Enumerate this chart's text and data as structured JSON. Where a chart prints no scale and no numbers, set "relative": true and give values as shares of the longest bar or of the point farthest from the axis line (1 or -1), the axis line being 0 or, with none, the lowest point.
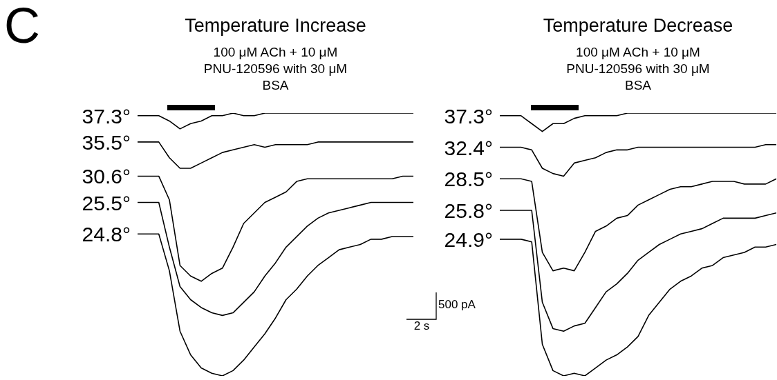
{
  "chart_data": [
    {
      "type": "line",
      "title": "Temperature Increase",
      "subtitle": "100 μM ACh + 10 μM PNU-120596 with 30 μM BSA",
      "relative": true,
      "marker": "none",
      "annotations": [
        "C"
      ],
      "categories": [
        null,
        null,
        null,
        null,
        null,
        null,
        null,
        null,
        null,
        null,
        null,
        null,
        null,
        null,
        null,
        null,
        null,
        null,
        null,
        null,
        null,
        null,
        null,
        null,
        null,
        null,
        null
      ],
      "series": [
        {
          "name": "37.3°",
          "color": "#000000",
          "values": [
            0.99,
            0.99,
            0.99,
            0.97,
            0.94,
            0.96,
            0.97,
            0.99,
            0.99,
            1.0,
            0.99,
            0.99,
            1.0,
            1.0,
            1.0,
            1.0,
            1.0,
            1.0,
            1.0,
            1.0,
            1.0,
            1.0,
            1.0,
            1.0,
            1.0,
            1.0,
            1.0
          ]
        },
        {
          "name": "35.5°",
          "color": "#000000",
          "values": [
            0.89,
            0.89,
            0.89,
            0.83,
            0.79,
            0.79,
            0.81,
            0.83,
            0.85,
            0.86,
            0.87,
            0.88,
            0.87,
            0.88,
            0.88,
            0.88,
            0.88,
            0.89,
            0.89,
            0.89,
            0.89,
            0.89,
            0.89,
            0.89,
            0.89,
            0.89,
            0.89
          ]
        },
        {
          "name": "30.6°",
          "color": "#000000",
          "values": [
            0.76,
            0.76,
            0.76,
            0.67,
            0.42,
            0.38,
            0.36,
            0.39,
            0.41,
            0.49,
            0.58,
            0.62,
            0.66,
            0.68,
            0.7,
            0.74,
            0.75,
            0.75,
            0.75,
            0.75,
            0.75,
            0.75,
            0.75,
            0.75,
            0.75,
            0.76,
            0.76
          ]
        },
        {
          "name": "25.5°",
          "color": "#000000",
          "values": [
            0.66,
            0.66,
            0.66,
            0.49,
            0.34,
            0.29,
            0.26,
            0.24,
            0.23,
            0.24,
            0.28,
            0.32,
            0.38,
            0.43,
            0.49,
            0.53,
            0.57,
            0.6,
            0.62,
            0.63,
            0.64,
            0.65,
            0.66,
            0.66,
            0.66,
            0.66,
            0.66
          ]
        },
        {
          "name": "24.8°",
          "color": "#000000",
          "values": [
            0.54,
            0.54,
            0.54,
            0.4,
            0.17,
            0.08,
            0.03,
            0.01,
            0.0,
            0.02,
            0.06,
            0.11,
            0.16,
            0.22,
            0.29,
            0.33,
            0.38,
            0.42,
            0.45,
            0.48,
            0.49,
            0.5,
            0.52,
            0.52,
            0.53,
            0.53,
            0.53
          ]
        }
      ]
    },
    {
      "type": "line",
      "title": "Temperature Decrease",
      "subtitle": "100 μM ACh + 10 μM PNU-120596 with 30 μM BSA",
      "relative": true,
      "marker": "none",
      "annotations": [
        "500 pA",
        "2 s"
      ],
      "categories": [
        null,
        null,
        null,
        null,
        null,
        null,
        null,
        null,
        null,
        null,
        null,
        null,
        null,
        null,
        null,
        null,
        null,
        null,
        null,
        null,
        null,
        null,
        null,
        null,
        null,
        null,
        null
      ],
      "series": [
        {
          "name": "37.3°",
          "color": "#000000",
          "values": [
            0.99,
            0.99,
            0.99,
            0.96,
            0.93,
            0.96,
            0.96,
            0.98,
            0.99,
            0.99,
            0.99,
            0.99,
            1.0,
            1.0,
            1.0,
            1.0,
            1.0,
            1.0,
            1.0,
            1.0,
            1.0,
            1.0,
            1.0,
            1.0,
            1.0,
            1.0,
            1.0
          ]
        },
        {
          "name": "32.4°",
          "color": "#000000",
          "values": [
            0.87,
            0.87,
            0.87,
            0.86,
            0.79,
            0.77,
            0.76,
            0.81,
            0.82,
            0.83,
            0.85,
            0.86,
            0.86,
            0.87,
            0.87,
            0.87,
            0.87,
            0.87,
            0.87,
            0.87,
            0.87,
            0.87,
            0.87,
            0.87,
            0.87,
            0.88,
            0.88
          ]
        },
        {
          "name": "28.5°",
          "color": "#000000",
          "values": [
            0.75,
            0.75,
            0.75,
            0.74,
            0.47,
            0.4,
            0.41,
            0.4,
            0.47,
            0.55,
            0.57,
            0.6,
            0.61,
            0.65,
            0.67,
            0.69,
            0.71,
            0.72,
            0.72,
            0.73,
            0.74,
            0.74,
            0.74,
            0.73,
            0.73,
            0.73,
            0.75
          ]
        },
        {
          "name": "25.8°",
          "color": "#000000",
          "values": [
            0.63,
            0.63,
            0.63,
            0.63,
            0.28,
            0.18,
            0.17,
            0.19,
            0.2,
            0.26,
            0.32,
            0.35,
            0.39,
            0.44,
            0.47,
            0.5,
            0.52,
            0.54,
            0.55,
            0.56,
            0.58,
            0.6,
            0.6,
            0.6,
            0.6,
            0.61,
            0.62
          ]
        },
        {
          "name": "24.9°",
          "color": "#000000",
          "values": [
            0.52,
            0.52,
            0.52,
            0.51,
            0.12,
            0.02,
            0.0,
            0.01,
            0.0,
            0.03,
            0.06,
            0.08,
            0.11,
            0.15,
            0.23,
            0.28,
            0.33,
            0.36,
            0.38,
            0.41,
            0.42,
            0.45,
            0.46,
            0.47,
            0.49,
            0.49,
            0.5
          ]
        }
      ]
    }
  ]
}
